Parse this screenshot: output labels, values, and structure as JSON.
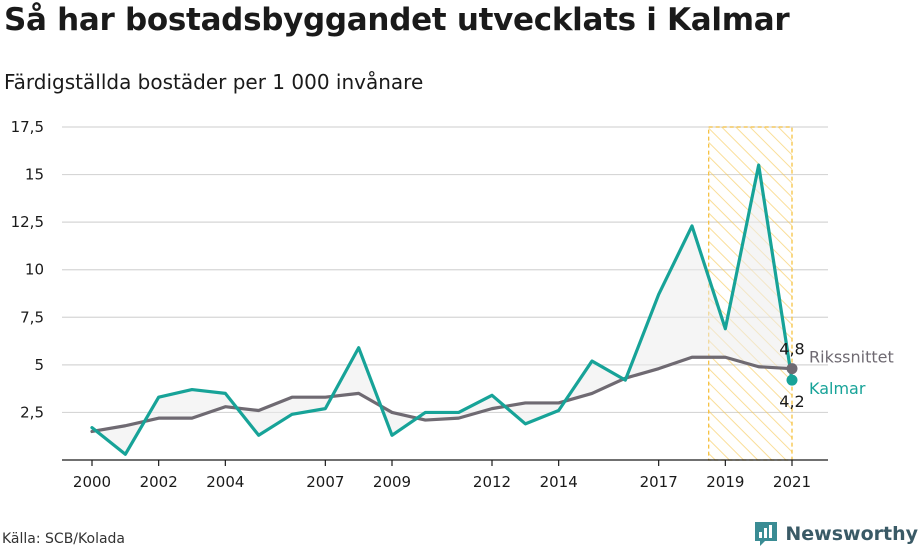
{
  "title": "Så har bostadsbyggandet utvecklats i Kalmar",
  "subtitle": "Färdigställda bostäder per 1 000 invånare",
  "source": "Källa: SCB/Kolada",
  "brand": "Newsworthy",
  "colors": {
    "kalmar": "#17a398",
    "riket": "#6f6a72",
    "highlight": "#f6c243",
    "grid": "#d6d6d6"
  },
  "chart_data": {
    "type": "line",
    "x": [
      2000,
      2001,
      2002,
      2003,
      2004,
      2005,
      2006,
      2007,
      2008,
      2009,
      2010,
      2011,
      2012,
      2013,
      2014,
      2015,
      2016,
      2017,
      2018,
      2019,
      2020,
      2021
    ],
    "series": [
      {
        "name": "Kalmar",
        "values": [
          1.7,
          0.3,
          3.3,
          3.7,
          3.5,
          1.3,
          2.4,
          2.7,
          5.9,
          1.3,
          2.5,
          2.5,
          3.4,
          1.9,
          2.6,
          5.2,
          4.2,
          8.7,
          12.3,
          6.9,
          15.5,
          4.2
        ]
      },
      {
        "name": "Rikssnittet",
        "values": [
          1.5,
          1.8,
          2.2,
          2.2,
          2.8,
          2.6,
          3.3,
          3.3,
          3.5,
          2.5,
          2.1,
          2.2,
          2.7,
          3.0,
          3.0,
          3.5,
          4.3,
          4.8,
          5.4,
          5.4,
          4.9,
          4.8
        ]
      }
    ],
    "xticks": [
      "2000",
      "2002",
      "2004",
      "2007",
      "2009",
      "2012",
      "2014",
      "2017",
      "2019",
      "2021"
    ],
    "yticks": [
      "2,5",
      "5",
      "7,5",
      "10",
      "12,5",
      "15",
      "17,5"
    ],
    "ylim": [
      0,
      17.5
    ],
    "end_labels": {
      "riket_value": "4,8",
      "kalmar_value": "4,2"
    },
    "highlight_range": [
      2018.5,
      2021
    ]
  }
}
